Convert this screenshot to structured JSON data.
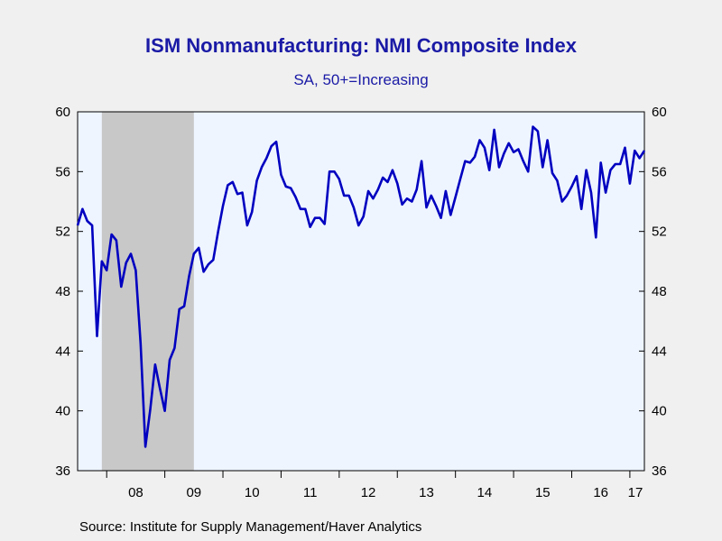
{
  "chart_data": {
    "type": "line",
    "title": "ISM Nonmanufacturing: NMI Composite Index",
    "subtitle": "SA, 50+=Increasing",
    "source": "Source:  Institute for Supply Management/Haver Analytics",
    "x_start": "2007-07",
    "x_end": "2017-04",
    "ylim": [
      36,
      60
    ],
    "yticks": [
      36,
      40,
      44,
      48,
      52,
      56,
      60
    ],
    "xtick_labels": [
      "08",
      "09",
      "10",
      "11",
      "12",
      "13",
      "14",
      "15",
      "16",
      "17"
    ],
    "recession_shading": {
      "start": "2007-12",
      "end": "2009-06"
    },
    "series": [
      {
        "color": "#0000c0",
        "dates": [
          "2007-07",
          "2007-08",
          "2007-09",
          "2007-10",
          "2007-11",
          "2007-12",
          "2008-01",
          "2008-02",
          "2008-03",
          "2008-04",
          "2008-05",
          "2008-06",
          "2008-07",
          "2008-08",
          "2008-09",
          "2008-10",
          "2008-11",
          "2008-12",
          "2009-01",
          "2009-02",
          "2009-03",
          "2009-04",
          "2009-05",
          "2009-06",
          "2009-07",
          "2009-08",
          "2009-09",
          "2009-10",
          "2009-11",
          "2009-12",
          "2010-01",
          "2010-02",
          "2010-03",
          "2010-04",
          "2010-05",
          "2010-06",
          "2010-07",
          "2010-08",
          "2010-09",
          "2010-10",
          "2010-11",
          "2010-12",
          "2011-01",
          "2011-02",
          "2011-03",
          "2011-04",
          "2011-05",
          "2011-06",
          "2011-07",
          "2011-08",
          "2011-09",
          "2011-10",
          "2011-11",
          "2011-12",
          "2012-01",
          "2012-02",
          "2012-03",
          "2012-04",
          "2012-05",
          "2012-06",
          "2012-07",
          "2012-08",
          "2012-09",
          "2012-10",
          "2012-11",
          "2012-12",
          "2013-01",
          "2013-02",
          "2013-03",
          "2013-04",
          "2013-05",
          "2013-06",
          "2013-07",
          "2013-08",
          "2013-09",
          "2013-10",
          "2013-11",
          "2013-12",
          "2014-01",
          "2014-02",
          "2014-03",
          "2014-04",
          "2014-05",
          "2014-06",
          "2014-07",
          "2014-08",
          "2014-09",
          "2014-10",
          "2014-11",
          "2014-12",
          "2015-01",
          "2015-02",
          "2015-03",
          "2015-04",
          "2015-05",
          "2015-06",
          "2015-07",
          "2015-08",
          "2015-09",
          "2015-10",
          "2015-11",
          "2015-12",
          "2016-01",
          "2016-02",
          "2016-03",
          "2016-04",
          "2016-05",
          "2016-06",
          "2016-07",
          "2016-08",
          "2016-09",
          "2016-10",
          "2016-11",
          "2016-12",
          "2017-01",
          "2017-02",
          "2017-03",
          "2017-04"
        ],
        "values": [
          52.4,
          53.5,
          52.7,
          52.4,
          45.0,
          50.0,
          49.4,
          51.8,
          51.4,
          48.3,
          49.9,
          50.5,
          49.4,
          44.5,
          37.6,
          40.1,
          43.1,
          41.5,
          40.0,
          43.4,
          44.2,
          46.8,
          47.0,
          49.0,
          50.5,
          50.9,
          49.3,
          49.8,
          50.1,
          52.0,
          53.7,
          55.1,
          55.3,
          54.5,
          54.6,
          52.4,
          53.3,
          55.4,
          56.3,
          56.9,
          57.7,
          58.0,
          55.8,
          55.0,
          54.9,
          54.3,
          53.5,
          53.5,
          52.3,
          52.9,
          52.9,
          52.5,
          56.0,
          56.0,
          55.5,
          54.4,
          54.4,
          53.6,
          52.4,
          53.0,
          54.7,
          54.2,
          54.8,
          55.6,
          55.3,
          56.1,
          55.2,
          53.8,
          54.2,
          54.0,
          54.8,
          56.7,
          53.6,
          54.4,
          53.7,
          52.9,
          54.7,
          53.1,
          54.3,
          55.5,
          56.7,
          56.6,
          57.0,
          58.1,
          57.6,
          56.1,
          58.8,
          56.3,
          57.2,
          57.9,
          57.3,
          57.5,
          56.7,
          56.0,
          59.0,
          58.7,
          56.3,
          58.1,
          55.9,
          55.4,
          54.0,
          54.4,
          55.0,
          55.7,
          53.5,
          56.1,
          54.6,
          51.6,
          56.6,
          54.6,
          56.1,
          56.5,
          56.5,
          57.6,
          55.2,
          57.4,
          56.9,
          57.4
        ]
      }
    ]
  }
}
